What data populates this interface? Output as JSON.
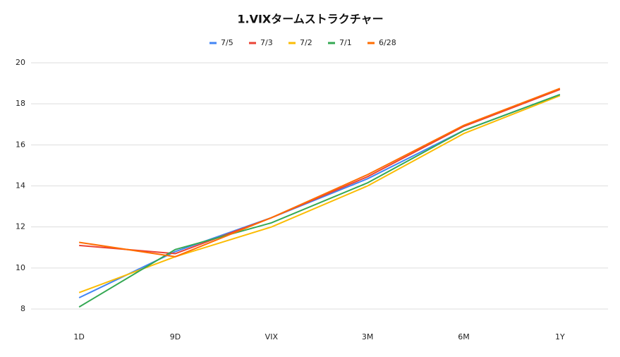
{
  "chart_data": {
    "type": "line",
    "title": "1.VIXタームストラクチャー",
    "categories": [
      "1D",
      "9D",
      "VIX",
      "3M",
      "6M",
      "1Y"
    ],
    "series": [
      {
        "name": "7/5",
        "color": "#4285f4",
        "values": [
          8.55,
          10.8,
          12.45,
          14.35,
          16.7,
          18.45
        ]
      },
      {
        "name": "7/3",
        "color": "#ea4335",
        "values": [
          11.1,
          10.7,
          12.45,
          14.45,
          16.9,
          18.7
        ]
      },
      {
        "name": "7/2",
        "color": "#fbbc04",
        "values": [
          8.8,
          10.55,
          12.0,
          14.0,
          16.55,
          18.4
        ]
      },
      {
        "name": "7/1",
        "color": "#34a853",
        "values": [
          8.1,
          10.9,
          12.2,
          14.15,
          16.7,
          18.45
        ]
      },
      {
        "name": "6/28",
        "color": "#ff6d01",
        "values": [
          11.25,
          10.55,
          12.45,
          14.55,
          16.95,
          18.75
        ]
      }
    ],
    "ylim": [
      8,
      20
    ],
    "yticks": [
      8,
      10,
      12,
      14,
      16,
      18,
      20
    ],
    "grid": true,
    "legend": "top"
  }
}
